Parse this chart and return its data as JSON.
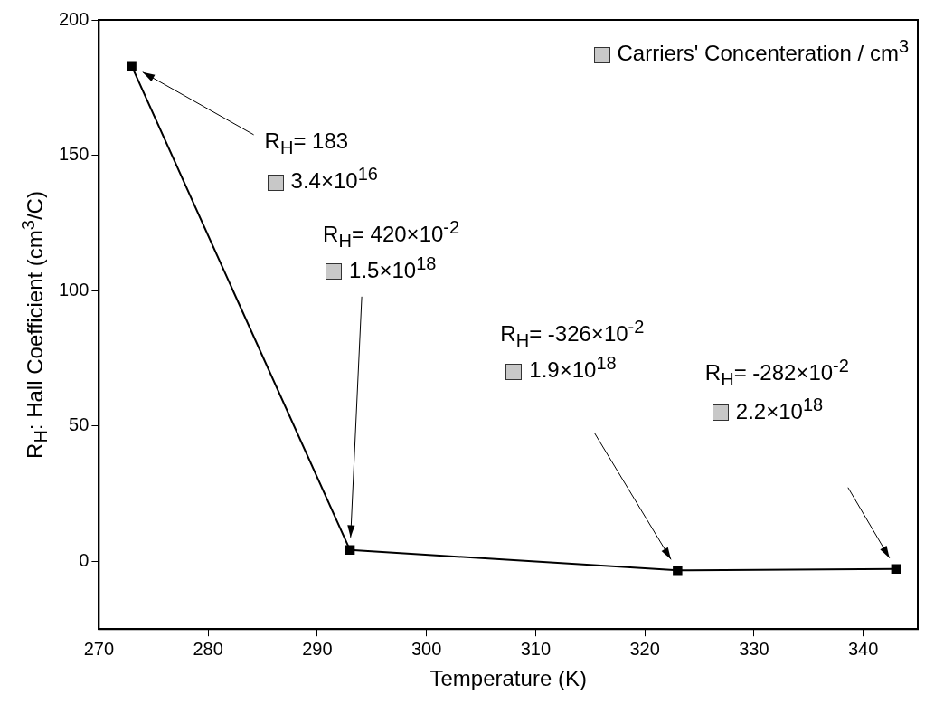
{
  "chart_data": {
    "type": "line",
    "xlabel": "Temperature (K)",
    "ylabel": "R$_{H}$: Hall Coefficient (cm$^{3}$/C)",
    "x": [
      273,
      293,
      323,
      343
    ],
    "series": [
      {
        "color": "#000000",
        "values": [
          183,
          4.2,
          -3.3,
          -2.8
        ]
      }
    ],
    "xlim": [
      270,
      345
    ],
    "xticks": [
      270,
      280,
      290,
      300,
      310,
      320,
      330,
      340
    ],
    "ylim": [
      -25,
      200
    ],
    "yticks": [
      0,
      50,
      100,
      150,
      200
    ],
    "marker": "square",
    "line_style": "solid",
    "grid": false,
    "annotations": [
      "R$_{H}$= 183",
      "R$_{H}$= 420×10$^{-2}$",
      "R$_{H}$= -326×10$^{-2}$",
      "R$_{H}$= -282×10$^{-2}$",
      "3.4×10$^{16}$",
      "1.5×10$^{18}$",
      "1.9×10$^{18}$",
      "2.2×10$^{18}$",
      "Carriers' Concenteration / cm$^{3}$"
    ]
  }
}
